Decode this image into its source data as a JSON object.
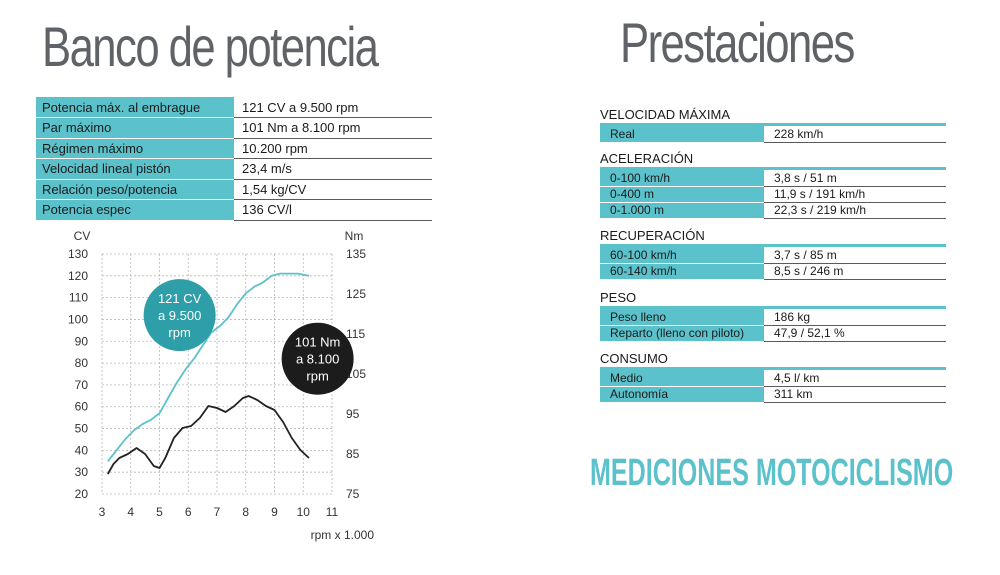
{
  "titles": {
    "bench": "Banco de potencia",
    "perf": "Prestaciones"
  },
  "bench": [
    {
      "label": "Potencia máx. al embrague",
      "value": "121 CV a 9.500 rpm"
    },
    {
      "label": "Par máximo",
      "value": "101 Nm a 8.100 rpm"
    },
    {
      "label": "Régimen máximo",
      "value": "10.200 rpm"
    },
    {
      "label": "Velocidad lineal pistón",
      "value": "23,4 m/s"
    },
    {
      "label": "Relación peso/potencia",
      "value": "1,54 kg/CV"
    },
    {
      "label": "Potencia espec",
      "value": "136 CV/l"
    }
  ],
  "sections": [
    {
      "title": "VELOCIDAD MÁXIMA",
      "rows": [
        {
          "label": "Real",
          "value": "228 km/h"
        }
      ]
    },
    {
      "title": "ACELERACIÓN",
      "rows": [
        {
          "label": "0-100 km/h",
          "value": "3,8 s /  51 m"
        },
        {
          "label": "0-400 m",
          "value": "11,9 s /  191 km/h"
        },
        {
          "label": "0-1.000 m",
          "value": "22,3 s / 219 km/h"
        }
      ]
    },
    {
      "title": "RECUPERACIÓN",
      "rows": [
        {
          "label": "60-100 km/h",
          "value": "3,7 s / 85 m"
        },
        {
          "label": "60-140 km/h",
          "value": "8,5 s / 246 m"
        }
      ]
    },
    {
      "title": "PESO",
      "rows": [
        {
          "label": "Peso lleno",
          "value": "186 kg"
        },
        {
          "label": "Reparto (lleno con piloto)",
          "value": "47,9 / 52,1 %"
        }
      ]
    },
    {
      "title": "CONSUMO",
      "rows": [
        {
          "label": "Medio",
          "value": "4,5 l/ km"
        },
        {
          "label": "Autonomía",
          "value": "311 km"
        }
      ]
    }
  ],
  "brand": "MEDICIONES MOTOCICLISMO",
  "colors": {
    "accent": "#5bc2cc",
    "torque": "#222222",
    "title_gray": "#5f6367"
  },
  "chart_data": {
    "type": "line",
    "title": "",
    "xlabel": "rpm x 1.000",
    "ylabel_left": "CV",
    "ylabel_right": "Nm",
    "xlim": [
      3,
      11
    ],
    "ylim_left": [
      20,
      130
    ],
    "ylim_right": [
      75,
      135
    ],
    "xticks": [
      3,
      4,
      5,
      6,
      7,
      8,
      9,
      10,
      11
    ],
    "yticks_left": [
      20,
      30,
      40,
      50,
      60,
      70,
      80,
      90,
      100,
      110,
      120,
      130
    ],
    "yticks_right": [
      75,
      85,
      95,
      105,
      115,
      125,
      135
    ],
    "grid": true,
    "series": [
      {
        "name": "CV",
        "axis": "left",
        "color": "#5bc2cc",
        "x": [
          3.2,
          3.5,
          3.8,
          4.1,
          4.4,
          4.7,
          5.0,
          5.3,
          5.6,
          5.9,
          6.2,
          6.5,
          6.8,
          7.1,
          7.4,
          7.7,
          8.0,
          8.3,
          8.6,
          8.9,
          9.2,
          9.5,
          9.8,
          10.2
        ],
        "y": [
          35,
          40,
          45,
          49,
          52,
          54,
          57,
          64,
          71,
          77,
          82,
          88,
          94,
          97,
          101,
          107,
          112,
          115,
          117,
          120,
          121,
          121,
          121,
          120
        ]
      },
      {
        "name": "Nm",
        "axis": "right",
        "color": "#222222",
        "x": [
          3.2,
          3.4,
          3.6,
          3.9,
          4.2,
          4.5,
          4.8,
          5.0,
          5.2,
          5.5,
          5.8,
          6.1,
          6.4,
          6.7,
          7.0,
          7.3,
          7.6,
          7.9,
          8.1,
          8.4,
          8.7,
          9.0,
          9.3,
          9.6,
          9.9,
          10.2
        ],
        "y": [
          80.0,
          82.5,
          84.0,
          85.0,
          86.5,
          85.0,
          82.0,
          81.5,
          84.0,
          89.0,
          91.5,
          92.0,
          94.0,
          97.0,
          96.5,
          95.5,
          97.0,
          99.0,
          99.5,
          98.5,
          97.0,
          96.0,
          93.0,
          89.0,
          86.0,
          84.0
        ]
      }
    ],
    "annotations": [
      {
        "text": [
          "121 CV",
          "a 9.500",
          "rpm"
        ],
        "color": "#2e9ea8",
        "x": 5.7,
        "y_axis": "left",
        "y": 102
      },
      {
        "text": [
          "101 Nm",
          "a 8.100",
          "rpm"
        ],
        "color": "#1c1c1c",
        "x": 10.5,
        "y_axis": "left",
        "y": 82
      }
    ]
  }
}
